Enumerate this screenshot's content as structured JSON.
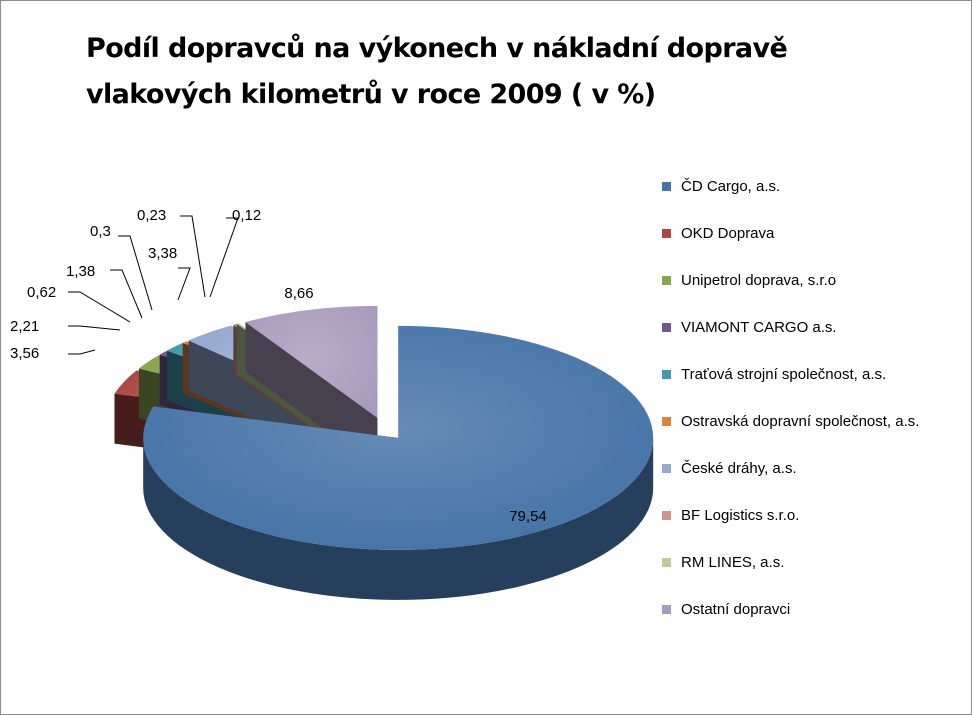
{
  "title_line1": "Podíl dopravců na výkonech v nákladní dopravě",
  "title_line2": "vlakových kilometrů v roce 2009 ( v %)",
  "chart_data": {
    "type": "pie",
    "title": "Podíl dopravců na výkonech v nákladní dopravě vlakových kilometrů v roce 2009 ( v %)",
    "legend_position": "right",
    "exploded": true,
    "three_d": true,
    "categories": [
      "ČD Cargo, a.s.",
      "OKD Doprava",
      "Unipetrol doprava, s.r.o",
      "VIAMONT CARGO a.s.",
      "Traťová strojní společnost, a.s.",
      "Ostravská dopravní společnost, a.s.",
      "České dráhy, a.s.",
      "BF Logistics s.r.o.",
      "RM LINES, a.s.",
      "Ostatní dopravci"
    ],
    "values": [
      79.54,
      3.56,
      2.21,
      0.62,
      1.38,
      0.3,
      3.38,
      0.23,
      0.12,
      8.66
    ],
    "data_labels": [
      "79,54",
      "3,56",
      "2,21",
      "0,62",
      "1,38",
      "0,3",
      "3,38",
      "0,23",
      "0,12",
      "8,66"
    ],
    "colors": [
      "#4572A7",
      "#AA4643",
      "#89A54E",
      "#71588F",
      "#4198AF",
      "#DB843D",
      "#93A9CF",
      "#D19392",
      "#B9CD96",
      "#A99BBD"
    ]
  }
}
